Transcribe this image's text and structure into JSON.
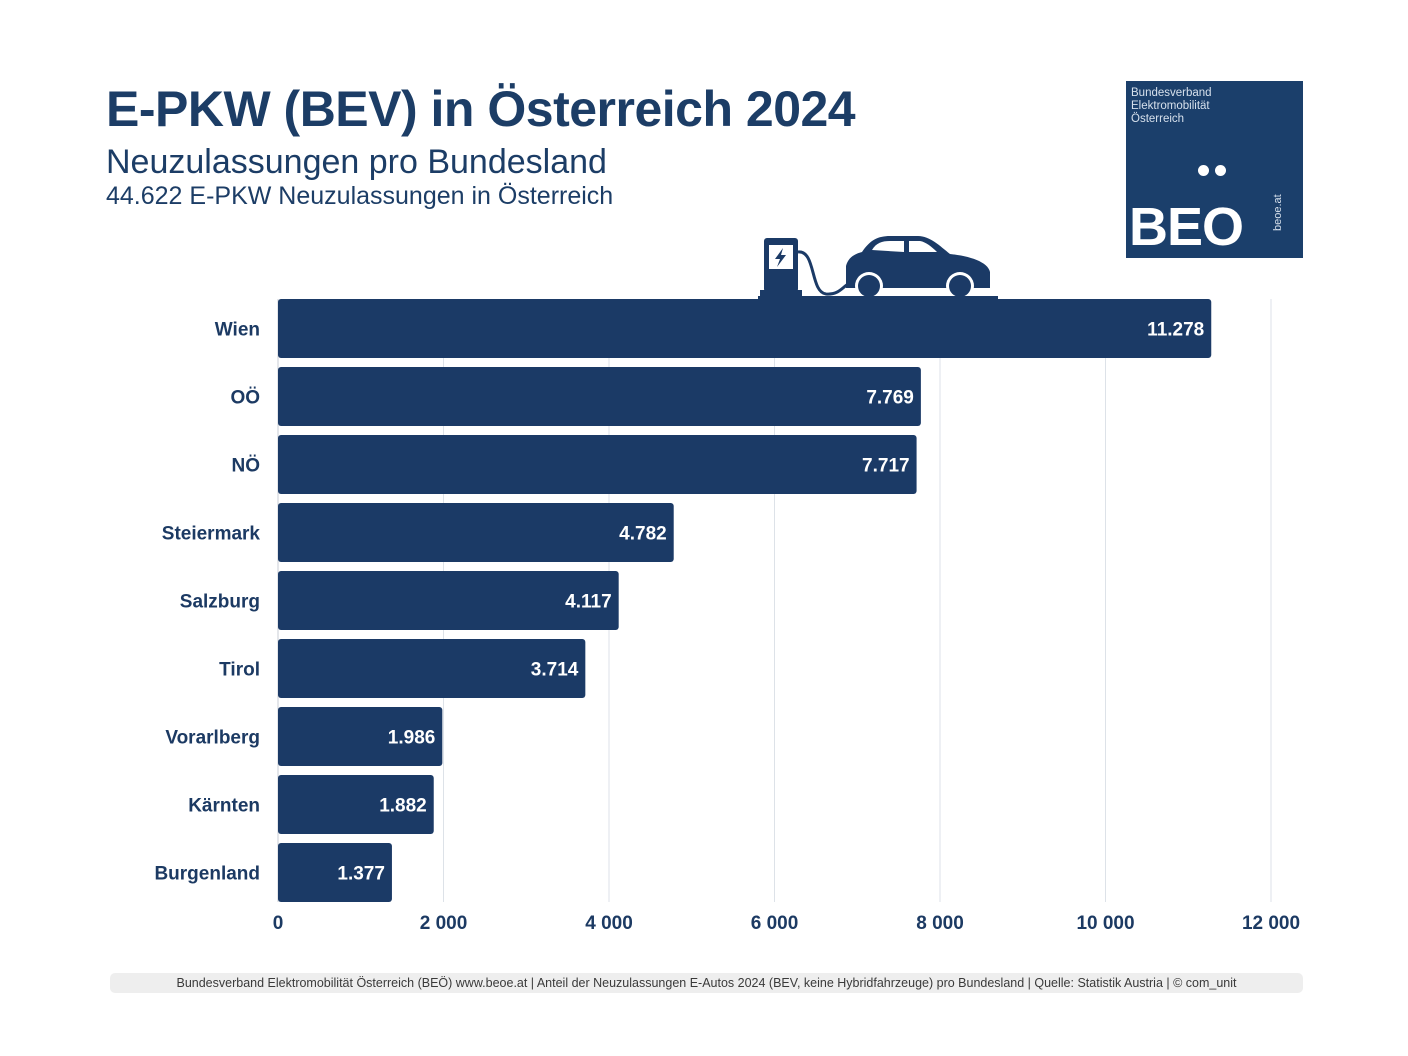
{
  "header": {
    "title": "E-PKW (BEV) in Österreich 2024",
    "subtitle": "Neuzulassungen pro Bundesland",
    "total_line": "44.622 E-PKW Neuzulassungen in Österreich"
  },
  "logo": {
    "org_line1": "Bundesverband",
    "org_line2": "Elektromobilität",
    "org_line3": "Österreich",
    "mark": "BEO",
    "url": "beoe.at"
  },
  "icons": {
    "illustration": "ev-charging-car-icon"
  },
  "colors": {
    "bar": "#1b3a66",
    "text": "#1c3a63",
    "grid": "#dde2e8",
    "label_inside": "#ffffff"
  },
  "chart_data": {
    "type": "bar",
    "orientation": "horizontal",
    "title": "E-PKW (BEV) in Österreich 2024",
    "categories": [
      "Wien",
      "OÖ",
      "NÖ",
      "Steiermark",
      "Salzburg",
      "Tirol",
      "Vorarlberg",
      "Kärnten",
      "Burgenland"
    ],
    "values": [
      11278,
      7769,
      7717,
      4782,
      4117,
      3714,
      1986,
      1882,
      1377
    ],
    "value_labels": [
      "11.278",
      "7.769",
      "7.717",
      "4.782",
      "4.117",
      "3.714",
      "1.986",
      "1.882",
      "1.377"
    ],
    "xlim": [
      0,
      12000
    ],
    "xticks": [
      0,
      2000,
      4000,
      6000,
      8000,
      10000,
      12000
    ],
    "xtick_labels": [
      "0",
      "2 000",
      "4 000",
      "6 000",
      "8 000",
      "10 000",
      "12 000"
    ],
    "xlabel": "",
    "ylabel": "",
    "grid": true,
    "legend": "none"
  },
  "footer": {
    "text": "Bundesverband Elektromobilität Österreich (BEÖ) www.beoe.at | Anteil der Neuzulassungen E-Autos 2024 (BEV, keine Hybridfahrzeuge) pro Bundesland | Quelle: Statistik Austria | © com_unit"
  }
}
